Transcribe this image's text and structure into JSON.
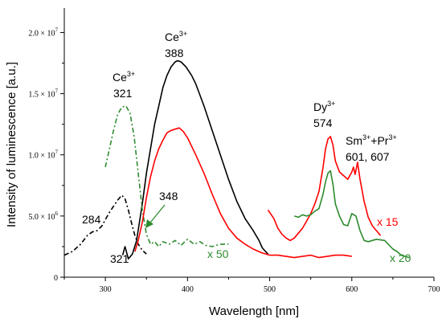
{
  "chart_data": {
    "type": "line",
    "title": "",
    "xlabel": "Wavelength [nm]",
    "ylabel": "Intensity of luminescence [a.u.]",
    "xlim": [
      250,
      700
    ],
    "ylim": [
      0,
      22000000
    ],
    "grid": false,
    "x_ticks": [
      "300",
      "400",
      "500",
      "600",
      "700"
    ],
    "y_ticks": [
      {
        "label": "0",
        "exp": ""
      },
      {
        "label": "5.0 × 10",
        "exp": "6"
      },
      {
        "label": "1.0 × 10",
        "exp": "7"
      },
      {
        "label": "1.5 × 10",
        "exp": "7"
      },
      {
        "label": "2.0 × 10",
        "exp": "7"
      }
    ],
    "series": [
      {
        "color": "#000000",
        "dash": "",
        "points": [
          [
            321,
            1800000
          ],
          [
            324,
            2500000
          ],
          [
            328,
            1500000
          ],
          [
            333,
            1900000
          ],
          [
            338,
            3000000
          ],
          [
            345,
            6000000
          ],
          [
            350,
            8500000
          ],
          [
            355,
            10500000
          ],
          [
            360,
            12500000
          ],
          [
            365,
            14000000
          ],
          [
            370,
            15500000
          ],
          [
            375,
            16500000
          ],
          [
            380,
            17200000
          ],
          [
            385,
            17600000
          ],
          [
            388,
            17700000
          ],
          [
            392,
            17600000
          ],
          [
            398,
            17200000
          ],
          [
            405,
            16500000
          ],
          [
            410,
            15800000
          ],
          [
            420,
            14000000
          ],
          [
            430,
            12000000
          ],
          [
            440,
            10000000
          ],
          [
            450,
            8000000
          ],
          [
            460,
            6200000
          ],
          [
            470,
            4800000
          ],
          [
            480,
            3800000
          ],
          [
            487,
            3000000
          ],
          [
            491,
            2400000
          ],
          [
            495,
            2100000
          ],
          [
            498,
            1900000
          ]
        ]
      },
      {
        "color": "#000000",
        "dash": "6 3 2 3",
        "points": [
          [
            250,
            1800000
          ],
          [
            260,
            2100000
          ],
          [
            270,
            2700000
          ],
          [
            278,
            3400000
          ],
          [
            284,
            3700000
          ],
          [
            290,
            3800000
          ],
          [
            296,
            4200000
          ],
          [
            300,
            4700000
          ],
          [
            305,
            5300000
          ],
          [
            310,
            5800000
          ],
          [
            315,
            6300000
          ],
          [
            320,
            6700000
          ],
          [
            324,
            6400000
          ],
          [
            328,
            5500000
          ],
          [
            332,
            4400000
          ],
          [
            336,
            3400000
          ],
          [
            340,
            2700000
          ],
          [
            345,
            2200000
          ],
          [
            350,
            1900000
          ]
        ]
      },
      {
        "color": "#2e8b2e",
        "dash": "6 3 2 3",
        "points": [
          [
            300,
            9000000
          ],
          [
            305,
            10500000
          ],
          [
            310,
            12000000
          ],
          [
            315,
            13300000
          ],
          [
            320,
            13900000
          ],
          [
            325,
            14000000
          ],
          [
            330,
            13400000
          ],
          [
            335,
            11500000
          ],
          [
            340,
            8500000
          ],
          [
            345,
            5500000
          ],
          [
            350,
            3500000
          ],
          [
            355,
            2700000
          ],
          [
            360,
            2900000
          ],
          [
            365,
            2500000
          ],
          [
            370,
            2900000
          ],
          [
            378,
            2700000
          ],
          [
            385,
            3000000
          ],
          [
            392,
            2600000
          ],
          [
            400,
            3100000
          ],
          [
            408,
            2700000
          ],
          [
            415,
            2900000
          ],
          [
            422,
            2600000
          ],
          [
            430,
            2500000
          ],
          [
            440,
            2700000
          ],
          [
            450,
            2700000
          ]
        ]
      },
      {
        "color": "#ff0000",
        "dash": "",
        "points": [
          [
            336,
            2100000
          ],
          [
            340,
            3000000
          ],
          [
            345,
            4500000
          ],
          [
            350,
            6500000
          ],
          [
            355,
            8200000
          ],
          [
            360,
            9500000
          ],
          [
            365,
            10500000
          ],
          [
            370,
            11200000
          ],
          [
            375,
            11800000
          ],
          [
            380,
            12000000
          ],
          [
            385,
            12100000
          ],
          [
            390,
            12200000
          ],
          [
            395,
            11900000
          ],
          [
            400,
            11400000
          ],
          [
            410,
            10000000
          ],
          [
            420,
            8500000
          ],
          [
            430,
            6800000
          ],
          [
            440,
            5200000
          ],
          [
            450,
            4000000
          ],
          [
            460,
            3200000
          ],
          [
            470,
            2700000
          ],
          [
            480,
            2300000
          ],
          [
            490,
            2000000
          ],
          [
            500,
            1800000
          ],
          [
            510,
            1800000
          ],
          [
            520,
            1700000
          ],
          [
            530,
            1600000
          ],
          [
            540,
            1700000
          ],
          [
            550,
            1800000
          ],
          [
            560,
            1600000
          ],
          [
            570,
            1700000
          ],
          [
            580,
            1800000
          ],
          [
            590,
            1800000
          ],
          [
            600,
            1700000
          ]
        ]
      },
      {
        "color": "#ff0000",
        "dash": "",
        "points": [
          [
            498,
            5500000
          ],
          [
            505,
            4800000
          ],
          [
            510,
            4000000
          ],
          [
            515,
            3500000
          ],
          [
            520,
            3200000
          ],
          [
            525,
            3000000
          ],
          [
            530,
            3200000
          ],
          [
            535,
            3600000
          ],
          [
            540,
            4000000
          ],
          [
            545,
            4600000
          ],
          [
            550,
            5200000
          ],
          [
            555,
            6000000
          ],
          [
            560,
            7000000
          ],
          [
            565,
            9000000
          ],
          [
            568,
            10500000
          ],
          [
            571,
            11300000
          ],
          [
            574,
            11500000
          ],
          [
            577,
            10800000
          ],
          [
            580,
            9500000
          ],
          [
            585,
            8600000
          ],
          [
            590,
            8300000
          ],
          [
            595,
            8000000
          ],
          [
            600,
            8600000
          ],
          [
            602,
            9000000
          ],
          [
            604,
            8400000
          ],
          [
            607,
            9400000
          ],
          [
            610,
            8000000
          ],
          [
            615,
            6200000
          ],
          [
            620,
            4900000
          ],
          [
            625,
            4200000
          ],
          [
            630,
            3800000
          ],
          [
            635,
            3400000
          ]
        ]
      },
      {
        "color": "#2e8b2e",
        "dash": "",
        "points": [
          [
            530,
            5000000
          ],
          [
            535,
            4900000
          ],
          [
            540,
            5100000
          ],
          [
            545,
            5000000
          ],
          [
            550,
            5100000
          ],
          [
            555,
            5400000
          ],
          [
            560,
            5600000
          ],
          [
            565,
            6800000
          ],
          [
            568,
            7800000
          ],
          [
            571,
            8500000
          ],
          [
            574,
            8700000
          ],
          [
            577,
            7600000
          ],
          [
            580,
            6000000
          ],
          [
            585,
            5000000
          ],
          [
            590,
            4300000
          ],
          [
            595,
            4200000
          ],
          [
            600,
            5200000
          ],
          [
            605,
            5000000
          ],
          [
            610,
            3800000
          ],
          [
            615,
            3000000
          ],
          [
            620,
            2900000
          ],
          [
            630,
            3100000
          ],
          [
            640,
            3000000
          ],
          [
            650,
            2300000
          ],
          [
            655,
            2100000
          ],
          [
            660,
            1800000
          ],
          [
            665,
            1700000
          ],
          [
            670,
            1600000
          ]
        ]
      }
    ],
    "annotations": [
      {
        "text": "Ce",
        "sup": "3+"
      },
      {
        "text": "388",
        "sup": ""
      },
      {
        "text": "Ce",
        "sup": "3+"
      },
      {
        "text": "321",
        "sup": ""
      },
      {
        "text": "Dy",
        "sup": "3+"
      },
      {
        "text": "574",
        "sup": ""
      },
      {
        "text": "Sm",
        "sup": "3+",
        "text2": "+Pr",
        "sup2": "3+"
      },
      {
        "text": "601, 607",
        "sup": ""
      },
      {
        "text": "348",
        "sup": ""
      },
      {
        "text": "284",
        "sup": ""
      },
      {
        "text": "321",
        "sup": ""
      },
      {
        "text": "x 50",
        "sup": ""
      },
      {
        "text": "x 15",
        "sup": ""
      },
      {
        "text": "x 20",
        "sup": ""
      }
    ]
  }
}
